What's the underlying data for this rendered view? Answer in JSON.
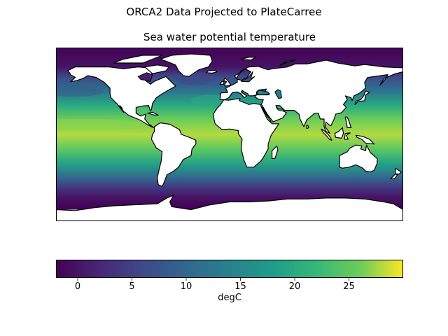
{
  "figure": {
    "suptitle": "ORCA2 Data Projected to PlateCarree",
    "title": "Sea water potential temperature"
  },
  "colorbar": {
    "label": "degC",
    "colormap": "viridis",
    "range": [
      -2,
      30
    ],
    "ticks": [
      0,
      5,
      10,
      15,
      20,
      25
    ]
  },
  "map": {
    "projection": "PlateCarree",
    "extent_lon": [
      -180,
      180
    ],
    "extent_lat": [
      -90,
      90
    ],
    "land_color": "#ffffff",
    "coastline_color": "#000000",
    "data_lat_coverage": [
      -78,
      90
    ]
  },
  "chart_data": {
    "type": "heatmap",
    "title": "Sea water potential temperature",
    "xlabel": "",
    "ylabel": "",
    "colorbar_label": "degC",
    "vmin": -2,
    "vmax": 30,
    "zonal_profile": [
      {
        "lat": 85,
        "value": -1.5
      },
      {
        "lat": 70,
        "value": 0
      },
      {
        "lat": 60,
        "value": 6
      },
      {
        "lat": 45,
        "value": 12
      },
      {
        "lat": 30,
        "value": 20
      },
      {
        "lat": 15,
        "value": 26
      },
      {
        "lat": 0,
        "value": 28
      },
      {
        "lat": -15,
        "value": 25
      },
      {
        "lat": -30,
        "value": 19
      },
      {
        "lat": -45,
        "value": 10
      },
      {
        "lat": -55,
        "value": 4
      },
      {
        "lat": -65,
        "value": 0
      },
      {
        "lat": -75,
        "value": -1.8
      }
    ]
  }
}
